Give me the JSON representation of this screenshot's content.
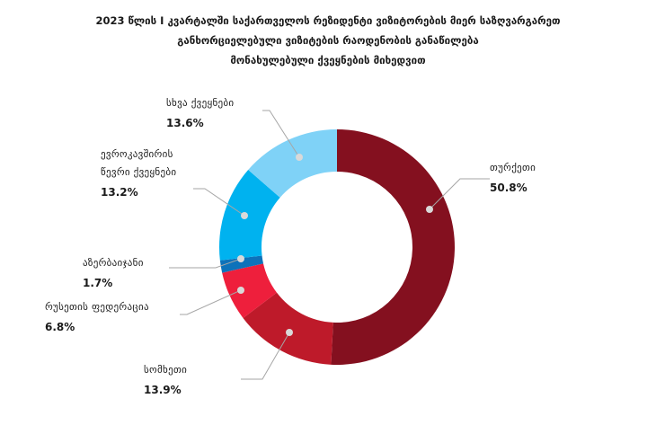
{
  "title_lines": [
    "2023 წლის I კვარტალში  საქართველოს რეზიდენტი ვიზიტორების მიერ საზღვარგარეთ",
    "განხორციელებული ვიზიტების რაოდენობის განაწილება",
    "მონახულებული ქვეყნების მიხედვით"
  ],
  "chart_data": {
    "type": "pie",
    "variant": "donut",
    "start": "top, clockwise",
    "slices": [
      {
        "label": "თურქეთი",
        "value": 50.8,
        "display": "50.8%",
        "color": "#84101f",
        "label_lines": [
          "თურქეთი"
        ]
      },
      {
        "label": "სომხეთი",
        "value": 13.9,
        "display": "13.9%",
        "color": "#be1a2a",
        "label_lines": [
          "სომხეთი"
        ]
      },
      {
        "label": "რუსეთის ფედერაცია",
        "value": 6.8,
        "display": "6.8%",
        "color": "#ee1f3c",
        "label_lines": [
          "რუსეთის ფედერაცია"
        ]
      },
      {
        "label": "აზერბაიჯანი",
        "value": 1.7,
        "display": "1.7%",
        "color": "#0d72ba",
        "label_lines": [
          "აზერბაიჯანი"
        ]
      },
      {
        "label": "ევროკავშირის წევრი ქვეყნები",
        "value": 13.2,
        "display": "13.2%",
        "color": "#00b2ef",
        "label_lines": [
          "ევროკავშირის",
          "წევრი ქვეყნები"
        ]
      },
      {
        "label": "სხვა ქვეყნები",
        "value": 13.6,
        "display": "13.6%",
        "color": "#7fd2f7",
        "label_lines": [
          "სხვა ქვეყნები"
        ]
      }
    ]
  }
}
